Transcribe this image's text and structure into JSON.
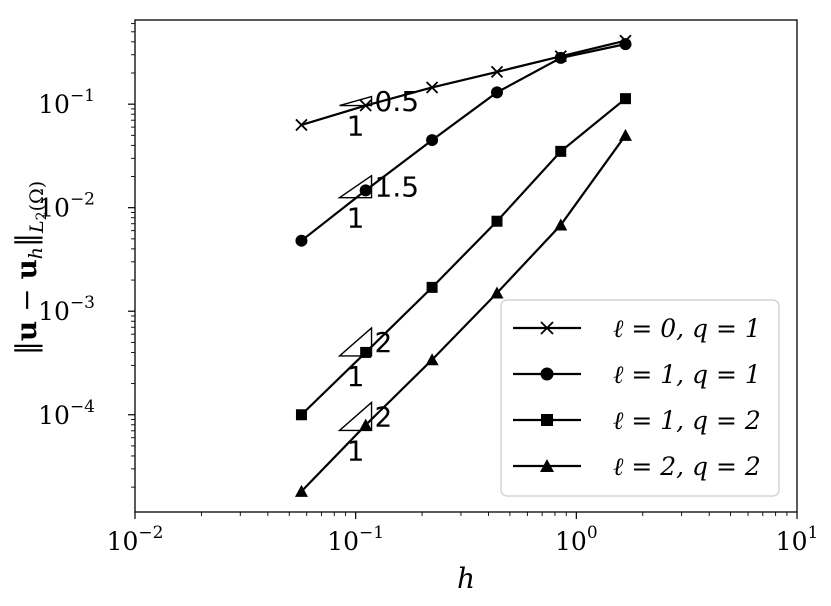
{
  "chart_data": {
    "type": "line",
    "title": "",
    "xlabel": "h",
    "ylabel": "||u − u_h||_{L2(Ω)}",
    "xscale": "log",
    "yscale": "log",
    "xlim": [
      0.01,
      10
    ],
    "ylim": [
      1.15e-05,
      0.65
    ],
    "x_ticks": [
      {
        "value": 0.01,
        "base": "10",
        "exp": "−2"
      },
      {
        "value": 0.1,
        "base": "10",
        "exp": "−1"
      },
      {
        "value": 1,
        "base": "10",
        "exp": "0"
      },
      {
        "value": 10,
        "base": "10",
        "exp": "1"
      }
    ],
    "y_ticks": [
      {
        "value": 0.0001,
        "base": "10",
        "exp": "−4"
      },
      {
        "value": 0.001,
        "base": "10",
        "exp": "−3"
      },
      {
        "value": 0.01,
        "base": "10",
        "exp": "−2"
      },
      {
        "value": 0.1,
        "base": "10",
        "exp": "−1"
      }
    ],
    "grid": false,
    "legend_position": "lower-right",
    "series": [
      {
        "name": "ℓ = 0, q = 1",
        "marker": "x",
        "color": "#000000",
        "x": [
          0.0568,
          0.111,
          0.222,
          0.437,
          0.85,
          1.67
        ],
        "y": [
          0.063,
          0.097,
          0.145,
          0.205,
          0.29,
          0.41
        ]
      },
      {
        "name": "ℓ = 1, q = 1",
        "marker": "circle",
        "color": "#000000",
        "x": [
          0.0568,
          0.111,
          0.222,
          0.437,
          0.85,
          1.67
        ],
        "y": [
          0.0048,
          0.0147,
          0.045,
          0.13,
          0.28,
          0.38
        ]
      },
      {
        "name": "ℓ = 1, q = 2",
        "marker": "square",
        "color": "#000000",
        "x": [
          0.0568,
          0.111,
          0.222,
          0.437,
          0.85,
          1.67
        ],
        "y": [
          0.0001,
          0.0004,
          0.0017,
          0.0074,
          0.035,
          0.113
        ]
      },
      {
        "name": "ℓ = 2, q = 2",
        "marker": "triangle",
        "color": "#000000",
        "x": [
          0.0568,
          0.111,
          0.222,
          0.437,
          0.85,
          1.67
        ],
        "y": [
          1.82e-05,
          7.95e-05,
          0.00034,
          0.0015,
          0.0068,
          0.05
        ]
      }
    ],
    "slope_annotations": [
      {
        "slope": "0.5",
        "run": "1",
        "x": 0.118,
        "y": 0.097
      },
      {
        "slope": "1.5",
        "run": "1",
        "x": 0.118,
        "y": 0.0125
      },
      {
        "slope": "2",
        "run": "1",
        "x": 0.118,
        "y": 0.00037
      },
      {
        "slope": "2",
        "run": "1",
        "x": 0.118,
        "y": 7.05e-05
      }
    ]
  }
}
